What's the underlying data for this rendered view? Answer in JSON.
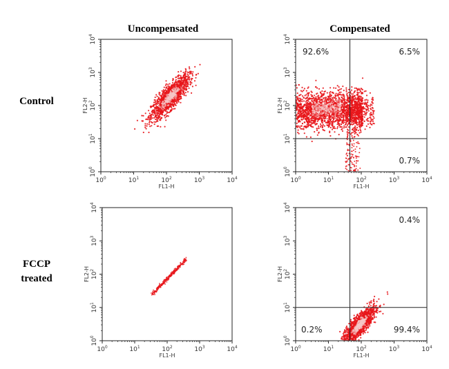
{
  "column_titles": [
    "Uncompensated",
    "Compensated"
  ],
  "row_labels": [
    [
      "Control"
    ],
    [
      "FCCP",
      "treated"
    ]
  ],
  "tick_labels": [
    {
      "base": "10",
      "exp": "0"
    },
    {
      "base": "10",
      "exp": "1"
    },
    {
      "base": "10",
      "exp": "2"
    },
    {
      "base": "10",
      "exp": "3"
    },
    {
      "base": "10",
      "exp": "4"
    }
  ],
  "colors": {
    "dots": "#e8161b",
    "dense_core": "#f6c9c9",
    "axes": "#222222",
    "gates": "#222222"
  },
  "chart_data": [
    {
      "type": "scatter",
      "row": "Control",
      "column": "Uncompensated",
      "xlabel": "FL1-H",
      "ylabel": "FL2-H",
      "xscale": "log",
      "yscale": "log",
      "xlim": [
        1,
        10000
      ],
      "ylim": [
        1,
        10000
      ],
      "grid": false,
      "population": {
        "shape": "ellipse",
        "x_center": 130,
        "y_center": 180,
        "x_range": [
          28,
          450
        ],
        "y_range": [
          40,
          900
        ],
        "tilt": "diagonal"
      },
      "gates": [],
      "quadrants": []
    },
    {
      "type": "scatter",
      "row": "Control",
      "column": "Compensated",
      "xlabel": "FL1-H",
      "ylabel": "FL2-H",
      "xscale": "log",
      "yscale": "log",
      "xlim": [
        1,
        10000
      ],
      "ylim": [
        1,
        10000
      ],
      "grid": false,
      "population": {
        "shape": "horizontal-band",
        "x_range": [
          1,
          250
        ],
        "y_range": [
          20,
          250
        ],
        "tail_y_range": [
          1,
          20
        ],
        "tail_x": 45
      },
      "gates": [
        {
          "x": 45
        },
        {
          "y": 10
        }
      ],
      "quadrants": [
        {
          "position": "upper-left",
          "value": "92.6%"
        },
        {
          "position": "upper-right",
          "value": "6.5%"
        },
        {
          "position": "lower-right",
          "value": "0.7%"
        }
      ]
    },
    {
      "type": "scatter",
      "row": "FCCP treated",
      "column": "Uncompensated",
      "xlabel": "FL1-H",
      "ylabel": "FL2-H",
      "xscale": "log",
      "yscale": "log",
      "xlim": [
        1,
        10000
      ],
      "ylim": [
        1,
        10000
      ],
      "grid": false,
      "population": {
        "shape": "thin-diagonal",
        "from": [
          35,
          25
        ],
        "to": [
          380,
          280
        ]
      },
      "gates": [],
      "quadrants": []
    },
    {
      "type": "scatter",
      "row": "FCCP treated",
      "column": "Compensated",
      "xlabel": "FL1-H",
      "ylabel": "FL2-H",
      "xscale": "log",
      "yscale": "log",
      "xlim": [
        1,
        10000
      ],
      "ylim": [
        1,
        10000
      ],
      "grid": false,
      "population": {
        "shape": "ellipse",
        "x_center": 90,
        "y_center": 3,
        "x_range": [
          35,
          300
        ],
        "y_range": [
          1,
          12
        ],
        "tilt": "diagonal"
      },
      "gates": [
        {
          "x": 45
        },
        {
          "y": 10
        }
      ],
      "quadrants": [
        {
          "position": "upper-right",
          "value": "0.4%"
        },
        {
          "position": "lower-left",
          "value": "0.2%"
        },
        {
          "position": "lower-right",
          "value": "99.4%"
        }
      ]
    }
  ]
}
